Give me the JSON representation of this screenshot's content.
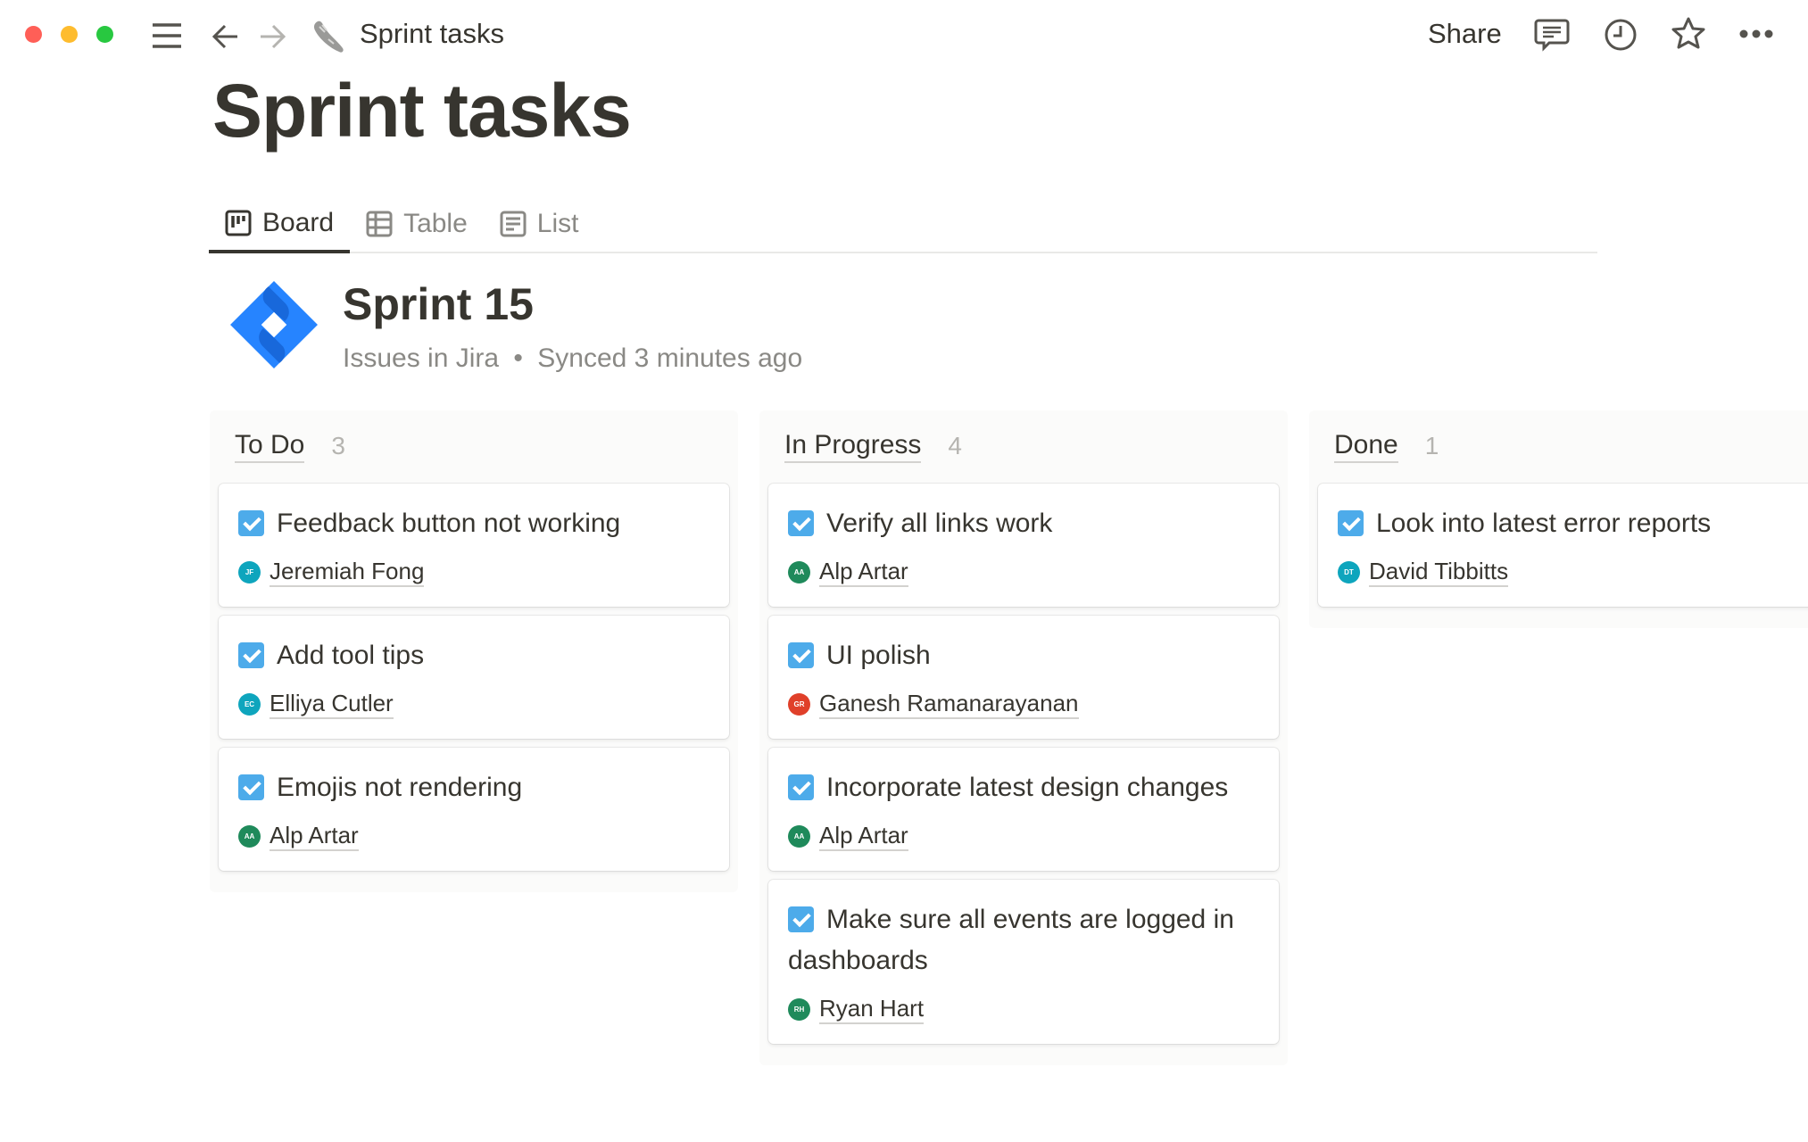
{
  "window": {
    "traffic_lights": {
      "close": "#ff5f57",
      "minimize": "#febc2e",
      "zoom": "#28c840"
    }
  },
  "topbar": {
    "title": "Sprint tasks",
    "page_icon": "sneaker-icon",
    "share_label": "Share",
    "icons": [
      "comment-icon",
      "history-clock-icon",
      "star-icon",
      "more-icon"
    ]
  },
  "page": {
    "title": "Sprint tasks"
  },
  "tabs": [
    {
      "label": "Board",
      "icon": "board-icon",
      "active": true
    },
    {
      "label": "Table",
      "icon": "table-icon"
    },
    {
      "label": "List",
      "icon": "list-icon"
    }
  ],
  "sprint": {
    "title": "Sprint 15",
    "source": "Issues in Jira",
    "separator": "•",
    "synced": "Synced 3 minutes ago",
    "brand_color": "#2684ff"
  },
  "columns": [
    {
      "name": "To Do",
      "count": "3",
      "cards": [
        {
          "title": "Feedback button not working",
          "assignee": "Jeremiah Fong",
          "initials": "JF",
          "color": "#0ea5bd"
        },
        {
          "title": "Add tool tips",
          "assignee": "Elliya Cutler",
          "initials": "EC",
          "color": "#0ea5bd"
        },
        {
          "title": "Emojis not rendering",
          "assignee": "Alp Artar",
          "initials": "AA",
          "color": "#1f8a5b"
        }
      ]
    },
    {
      "name": "In Progress",
      "count": "4",
      "cards": [
        {
          "title": "Verify all links work",
          "assignee": "Alp Artar",
          "initials": "AA",
          "color": "#1f8a5b"
        },
        {
          "title": "UI polish",
          "assignee": "Ganesh Ramanarayanan",
          "initials": "GR",
          "color": "#e0402a"
        },
        {
          "title": "Incorporate latest design changes",
          "assignee": "Alp Artar",
          "initials": "AA",
          "color": "#1f8a5b"
        },
        {
          "title": "Make sure all events are logged in dashboards",
          "assignee": "Ryan Hart",
          "initials": "RH",
          "color": "#1f8a5b"
        }
      ]
    },
    {
      "name": "Done",
      "count": "1",
      "cards": [
        {
          "title": "Look into latest error reports",
          "assignee": "David Tibbitts",
          "initials": "DT",
          "color": "#0ea5bd"
        }
      ]
    }
  ]
}
